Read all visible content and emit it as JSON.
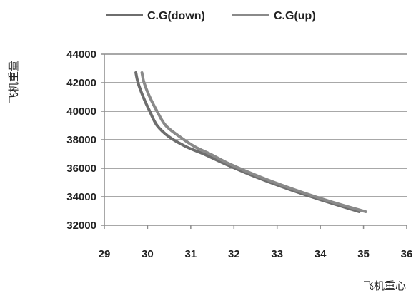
{
  "chart_data": {
    "type": "line",
    "title": "",
    "xlabel": "飞机重心",
    "ylabel": "飞机重量",
    "xlim": [
      29,
      36
    ],
    "ylim": [
      32000,
      44000
    ],
    "x_ticks": [
      "29",
      "30",
      "31",
      "32",
      "33",
      "34",
      "35",
      "36"
    ],
    "y_ticks": [
      "32000",
      "34000",
      "36000",
      "38000",
      "40000",
      "42000",
      "44000"
    ],
    "grid": "horizontal",
    "legend": "top",
    "series": [
      {
        "name": "C.G(down)",
        "color": "#6e6e6e",
        "points": [
          [
            29.73,
            42700
          ],
          [
            29.78,
            42000
          ],
          [
            29.9,
            41000
          ],
          [
            30.05,
            40000
          ],
          [
            30.22,
            39000
          ],
          [
            30.5,
            38200
          ],
          [
            30.9,
            37500
          ],
          [
            31.3,
            37000
          ],
          [
            31.8,
            36300
          ],
          [
            32.5,
            35400
          ],
          [
            33.3,
            34500
          ],
          [
            34.1,
            33700
          ],
          [
            34.9,
            32950
          ]
        ]
      },
      {
        "name": "C.G(up)",
        "color": "#8a8a8a",
        "points": [
          [
            29.87,
            42700
          ],
          [
            29.92,
            42000
          ],
          [
            30.05,
            41000
          ],
          [
            30.22,
            40000
          ],
          [
            30.42,
            39000
          ],
          [
            30.75,
            38200
          ],
          [
            31.1,
            37500
          ],
          [
            31.45,
            37000
          ],
          [
            31.9,
            36300
          ],
          [
            32.6,
            35400
          ],
          [
            33.4,
            34500
          ],
          [
            34.2,
            33700
          ],
          [
            35.05,
            32950
          ]
        ]
      }
    ]
  }
}
